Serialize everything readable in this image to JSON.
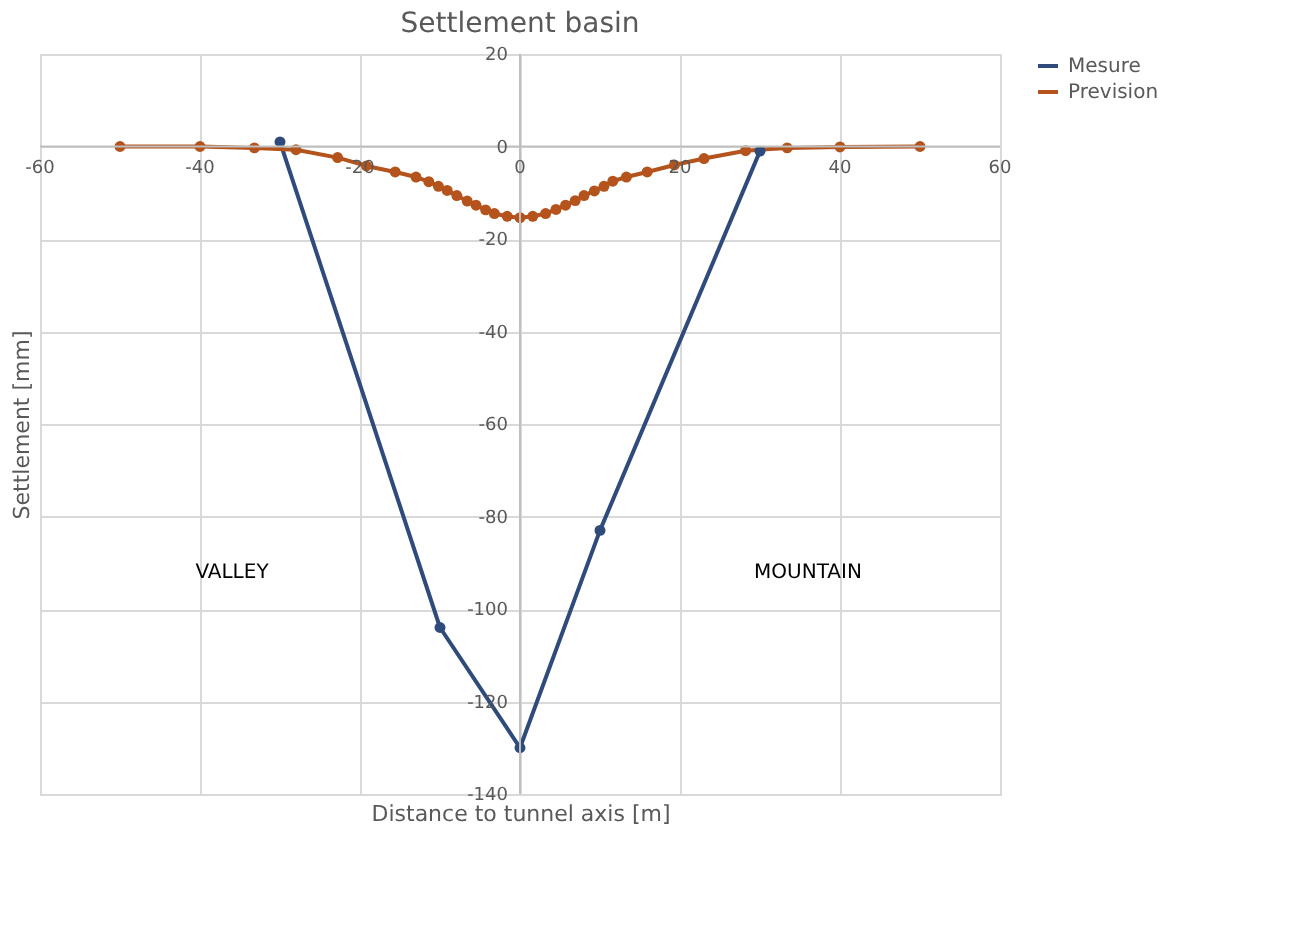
{
  "chart_data": {
    "type": "line",
    "title": "Settlement basin",
    "xlabel": "Distance to tunnel axis [m]",
    "ylabel": "Settlement [mm]",
    "xlim": [
      -60,
      60
    ],
    "xticks": [
      -60,
      -40,
      -20,
      0,
      20,
      40,
      60
    ],
    "ylim": [
      -140,
      20
    ],
    "yticks": [
      -140,
      -120,
      -100,
      -80,
      -60,
      -40,
      -20,
      0,
      20
    ],
    "grid": true,
    "legend": "right",
    "marker": "circle",
    "line_style": "solid",
    "annotations": [
      "VALLEY",
      "MOUNTAIN"
    ],
    "series": [
      {
        "name": "Mesure",
        "color": "#2f4b7c",
        "x": [
          -30,
          -10,
          0,
          10,
          30
        ],
        "values": [
          1,
          -104,
          -130,
          -83,
          -1
        ]
      },
      {
        "name": "Prevision",
        "color": "#b4531b",
        "x": [
          -50,
          -40,
          -33.2,
          -28,
          -22.8,
          -19.2,
          -15.6,
          -13,
          -11.4,
          -10.2,
          -9.1,
          -7.9,
          -6.6,
          -5.5,
          -4.3,
          -3.2,
          -1.6,
          0,
          1.6,
          3.2,
          4.5,
          5.7,
          6.9,
          8,
          9.3,
          10.5,
          11.6,
          13.3,
          15.9,
          19.3,
          23,
          28.2,
          33.4,
          40,
          50
        ],
        "values": [
          0,
          0,
          -0.3,
          -0.7,
          -2.4,
          -4.2,
          -5.5,
          -6.6,
          -7.6,
          -8.6,
          -9.5,
          -10.6,
          -11.8,
          -12.7,
          -13.7,
          -14.5,
          -15.1,
          -15.4,
          -15.1,
          -14.5,
          -13.6,
          -12.7,
          -11.7,
          -10.6,
          -9.6,
          -8.6,
          -7.5,
          -6.6,
          -5.5,
          -4.0,
          -2.6,
          -0.9,
          -0.3,
          -0.1,
          0
        ]
      }
    ]
  }
}
